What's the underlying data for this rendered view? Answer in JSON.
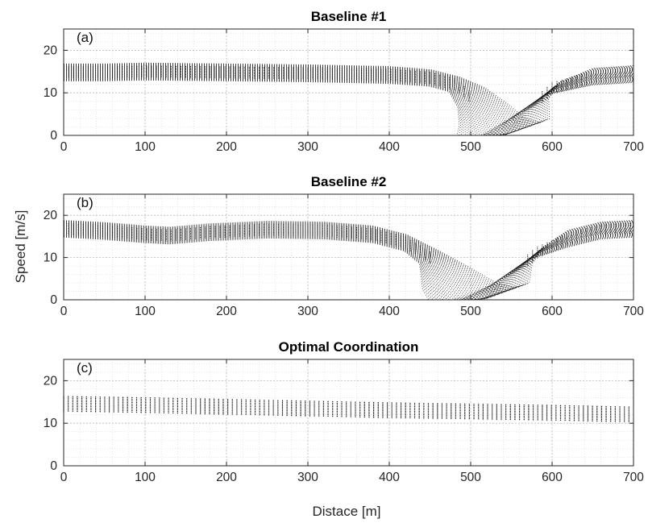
{
  "figure": {
    "ylabel": "Speed [m/s]",
    "xlabel": "Distace [m]"
  },
  "chart_data": [
    {
      "type": "scatter",
      "panel_label": "(a)",
      "title": "Baseline #1",
      "xlim": [
        0,
        700
      ],
      "ylim": [
        0,
        25
      ],
      "xticks": [
        0,
        100,
        200,
        300,
        400,
        500,
        600,
        700
      ],
      "yticks": [
        0,
        10,
        20
      ],
      "grid": true,
      "minor_grid": true,
      "series": [
        {
          "values": [
            [
              0,
              14.8
            ],
            [
              50,
              14.8
            ],
            [
              100,
              15.0
            ],
            [
              200,
              14.8
            ],
            [
              300,
              14.6
            ],
            [
              400,
              14.2
            ],
            [
              450,
              13.5
            ],
            [
              480,
              12.0
            ],
            [
              500,
              9.0
            ],
            [
              515,
              5.0
            ],
            [
              525,
              1.0
            ],
            [
              540,
              0.0
            ],
            [
              555,
              1.0
            ],
            [
              570,
              6.0
            ],
            [
              600,
              11.0
            ],
            [
              650,
              13.8
            ],
            [
              700,
              14.4
            ]
          ]
        }
      ]
    },
    {
      "type": "scatter",
      "panel_label": "(b)",
      "title": "Baseline #2",
      "xlim": [
        0,
        700
      ],
      "ylim": [
        0,
        25
      ],
      "xticks": [
        0,
        100,
        200,
        300,
        400,
        500,
        600,
        700
      ],
      "yticks": [
        0,
        10,
        20
      ],
      "grid": true,
      "minor_grid": true,
      "series": [
        {
          "values": [
            [
              0,
              16.8
            ],
            [
              50,
              16.3
            ],
            [
              100,
              15.5
            ],
            [
              130,
              15.2
            ],
            [
              180,
              16.0
            ],
            [
              250,
              16.6
            ],
            [
              320,
              16.4
            ],
            [
              380,
              15.5
            ],
            [
              420,
              13.5
            ],
            [
              450,
              10.0
            ],
            [
              470,
              5.0
            ],
            [
              490,
              1.0
            ],
            [
              510,
              0.0
            ],
            [
              530,
              1.0
            ],
            [
              550,
              6.0
            ],
            [
              580,
              11.0
            ],
            [
              620,
              14.5
            ],
            [
              660,
              16.4
            ],
            [
              700,
              16.8
            ]
          ]
        }
      ]
    },
    {
      "type": "scatter",
      "panel_label": "(c)",
      "title": "Optimal Coordination",
      "xlim": [
        0,
        700
      ],
      "ylim": [
        0,
        25
      ],
      "xticks": [
        0,
        100,
        200,
        300,
        400,
        500,
        600,
        700
      ],
      "yticks": [
        0,
        10,
        20
      ],
      "grid": true,
      "minor_grid": true,
      "series": [
        {
          "values": [
            [
              0,
              14.5
            ],
            [
              100,
              14.2
            ],
            [
              200,
              13.8
            ],
            [
              300,
              13.4
            ],
            [
              400,
              13.0
            ],
            [
              500,
              12.7
            ],
            [
              600,
              12.4
            ],
            [
              700,
              12.0
            ]
          ]
        }
      ]
    }
  ]
}
